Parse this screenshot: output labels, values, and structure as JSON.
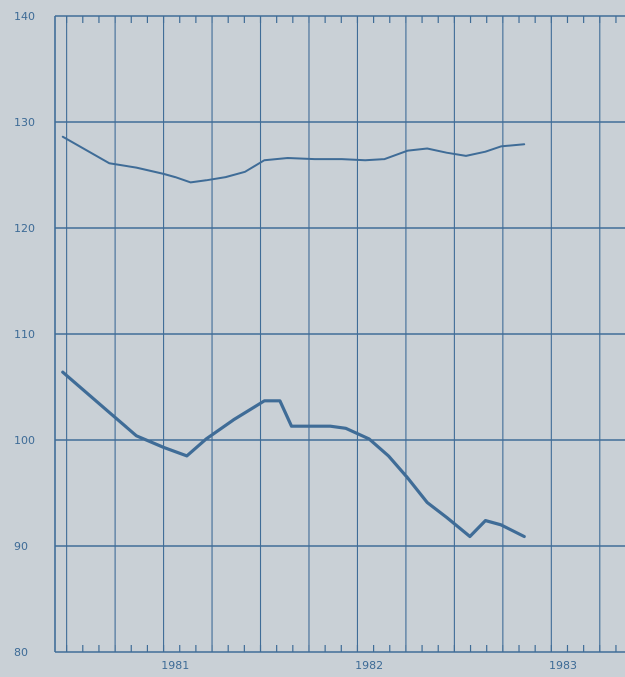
{
  "chart_data": {
    "type": "line",
    "title": "",
    "xlabel": "",
    "ylabel": "",
    "ylim": [
      80,
      140
    ],
    "xlim": [
      1980.44,
      1983.38
    ],
    "grid": true,
    "colors": {
      "line": "#3f6c97",
      "background": "#c9d0d6"
    },
    "y_ticks": [
      "80",
      "90",
      "100",
      "110",
      "120",
      "130",
      "140"
    ],
    "x_year_labels": [
      {
        "label": "1981",
        "x": 1981.06
      },
      {
        "label": "1982",
        "x": 1982.06
      },
      {
        "label": "1983",
        "x": 1983.06
      }
    ],
    "series": [
      {
        "style": "thin",
        "x": [
          1980.48,
          1980.72,
          1980.86,
          1981.0,
          1981.06,
          1981.14,
          1981.22,
          1981.32,
          1981.42,
          1981.52,
          1981.64,
          1981.78,
          1981.92,
          1982.04,
          1982.14,
          1982.26,
          1982.36,
          1982.46,
          1982.56,
          1982.66,
          1982.74,
          1982.86
        ],
        "values": [
          128.6,
          126.1,
          125.7,
          125.1,
          124.8,
          124.3,
          124.5,
          124.8,
          125.3,
          126.4,
          126.6,
          126.5,
          126.5,
          126.4,
          126.5,
          127.3,
          127.5,
          127.1,
          126.8,
          127.2,
          127.7,
          127.9
        ]
      },
      {
        "style": "thick",
        "x": [
          1980.48,
          1980.72,
          1980.86,
          1981.0,
          1981.12,
          1981.22,
          1981.36,
          1981.52,
          1981.6,
          1981.66,
          1981.76,
          1981.86,
          1981.94,
          1982.06,
          1982.16,
          1982.26,
          1982.36,
          1982.46,
          1982.58,
          1982.66,
          1982.74,
          1982.86
        ],
        "values": [
          106.4,
          102.6,
          100.4,
          99.3,
          98.5,
          100.1,
          101.9,
          103.7,
          103.7,
          101.3,
          101.3,
          101.3,
          101.1,
          100.1,
          98.5,
          96.4,
          94.1,
          92.7,
          90.9,
          92.4,
          92.0,
          90.9
        ]
      }
    ]
  }
}
